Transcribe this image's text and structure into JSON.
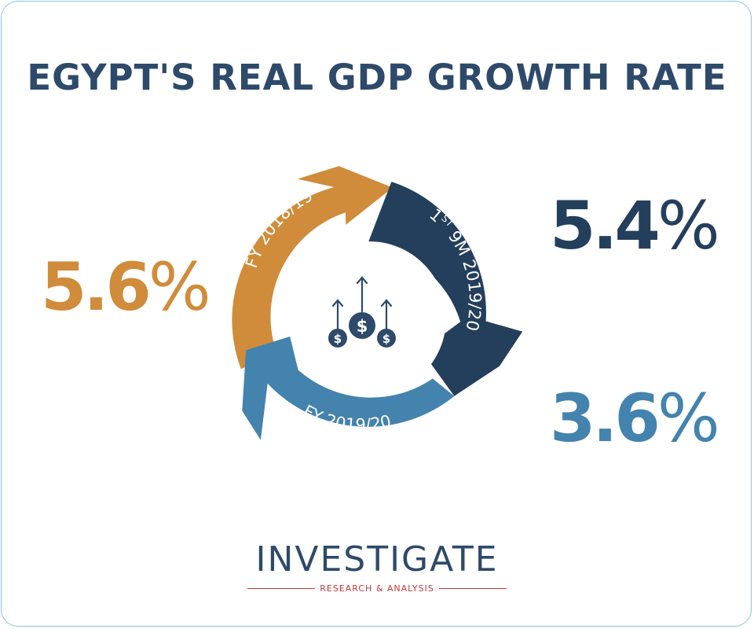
{
  "title": "EGYPT'S REAL GDP GROWTH RATE",
  "chart_data": {
    "type": "bar",
    "categories": [
      "FY 2018/19",
      "1ST 9M 2019/20",
      "FY 2019/20"
    ],
    "values": [
      5.6,
      5.4,
      3.6
    ],
    "unit": "%",
    "title": "EGYPT'S REAL GDP GROWTH RATE",
    "value_labels": [
      {
        "number": "5.6",
        "unit": "%"
      },
      {
        "number": "5.4",
        "unit": "%"
      },
      {
        "number": "3.6",
        "unit": "%"
      }
    ],
    "segments": [
      {
        "label": "FY 2018/19",
        "color": "#d08c3a"
      },
      {
        "label_main": "1",
        "label_sup": "ST",
        "label_rest": " 9M 2019/20",
        "color": "#243f5c"
      },
      {
        "label": "FY 2019/20",
        "color": "#4383ad"
      }
    ]
  },
  "center_icon": "money-growth-icon",
  "logo": {
    "brand": "INVESTIGATE",
    "tagline": "RESEARCH & ANALYSIS"
  }
}
